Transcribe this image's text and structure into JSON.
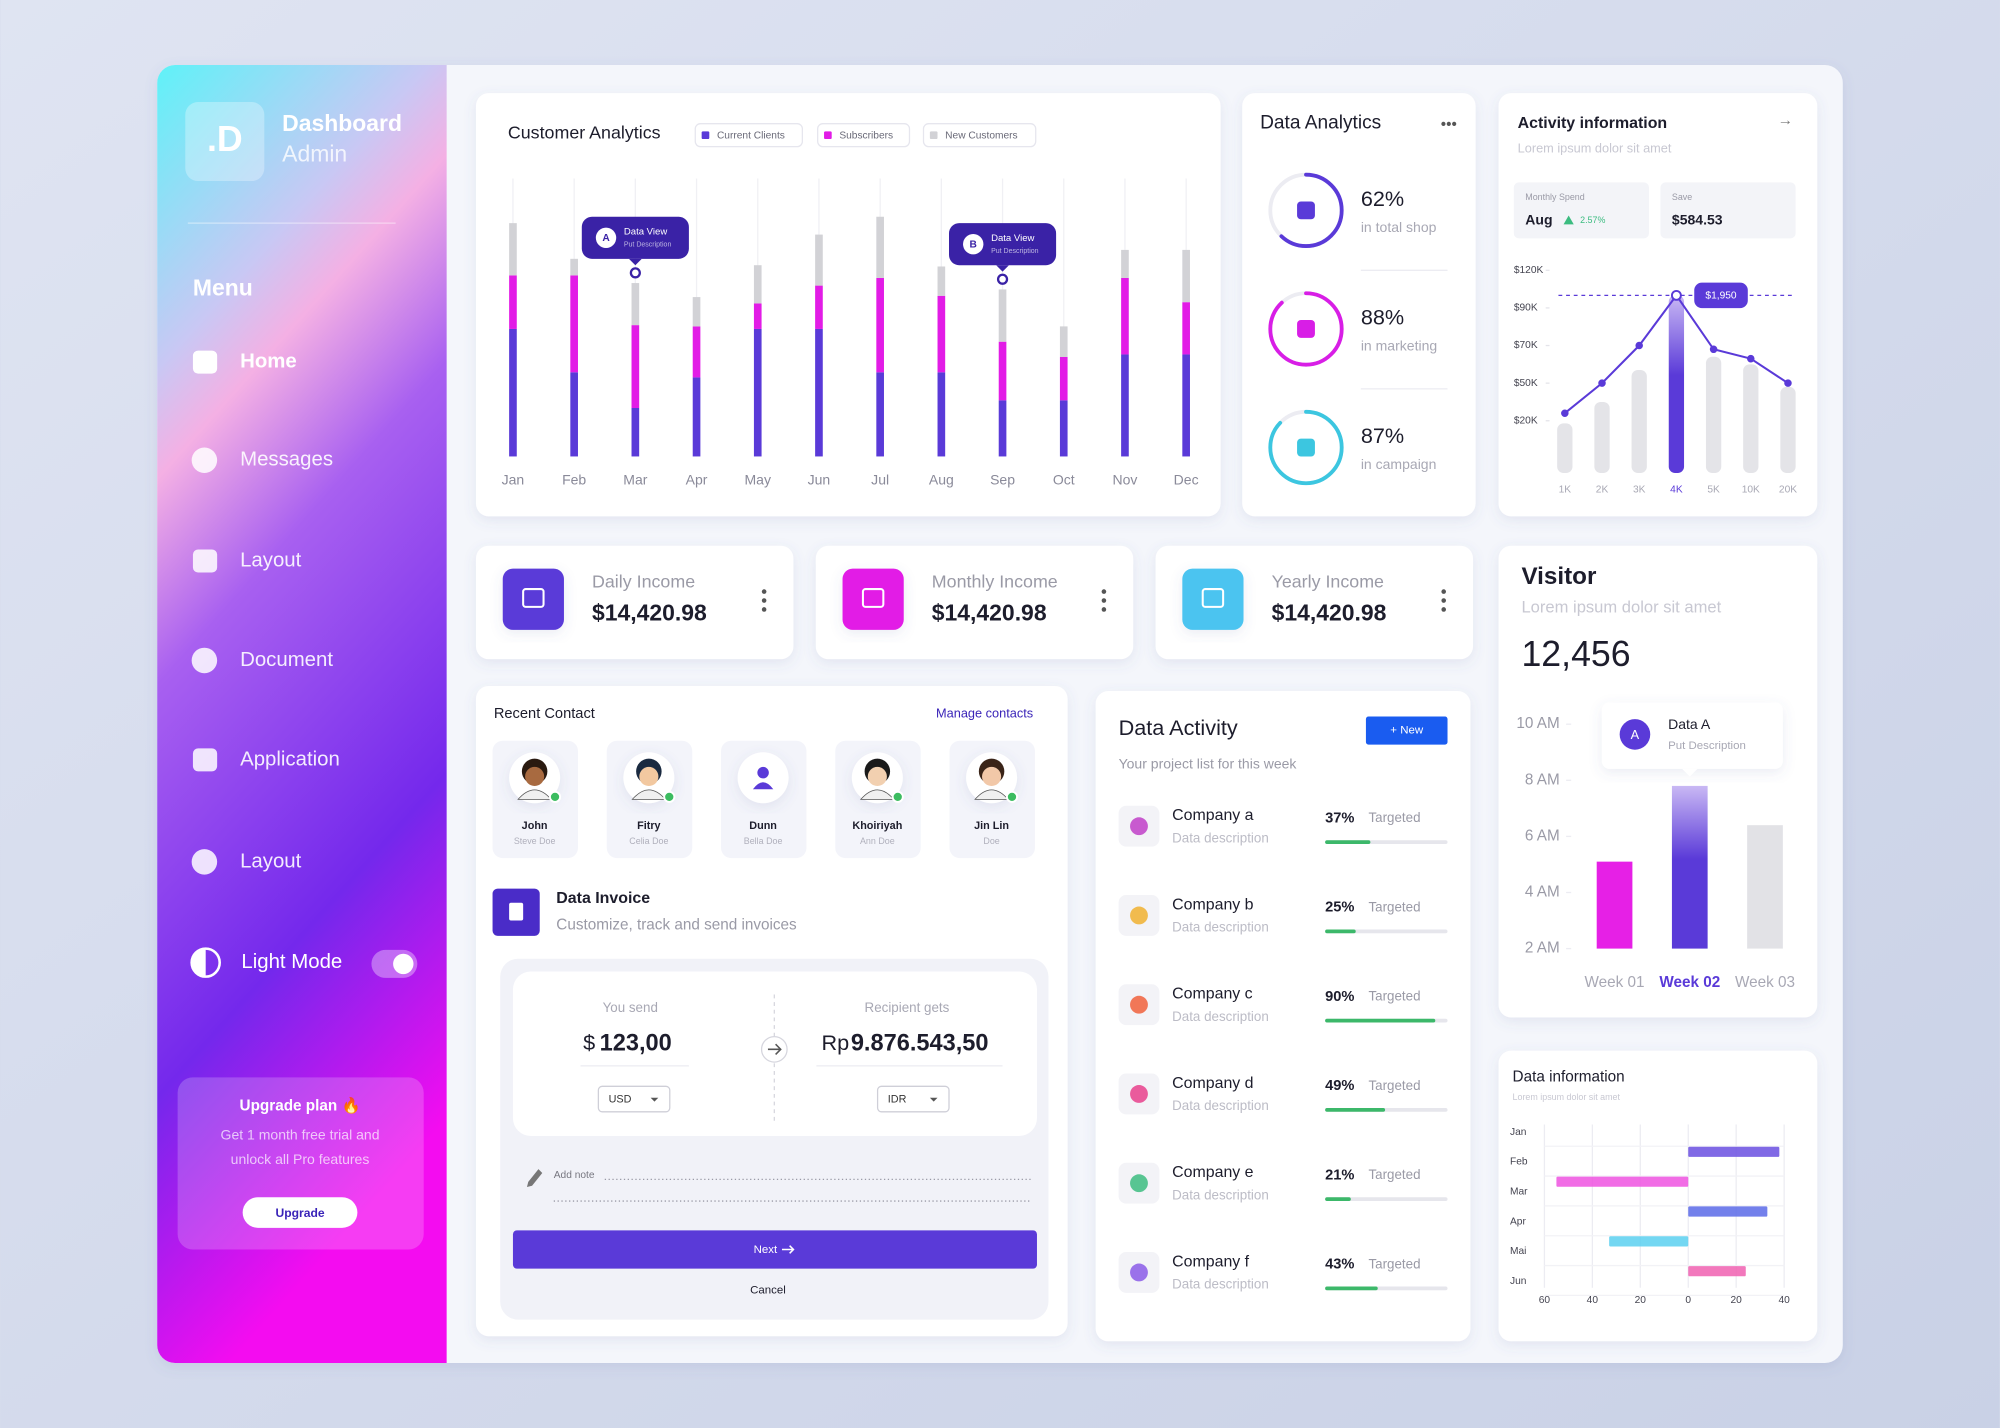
{
  "sidebar": {
    "logo": ".D",
    "brand": "Dashboard",
    "role": "Admin",
    "menu_title": "Menu",
    "items": [
      "Home",
      "Messages",
      "Layout",
      "Document",
      "Application",
      "Layout"
    ],
    "mode": "Light Mode",
    "upgrade": {
      "title": "Upgrade plan 🔥",
      "lines": [
        "Get 1 month free trial and",
        "unlock all Pro features"
      ],
      "button": "Upgrade"
    }
  },
  "chart_data": [
    {
      "type": "stacked_bar",
      "title": "Customer Analytics",
      "categories": [
        "Jan",
        "Feb",
        "Mar",
        "Apr",
        "May",
        "Jun",
        "Jul",
        "Aug",
        "Sep",
        "Oct",
        "Nov",
        "Dec"
      ],
      "series": [
        {
          "name": "Current Clients",
          "color": "#5a3ad8",
          "values": [
            100,
            66,
            38,
            62,
            100,
            100,
            66,
            66,
            44,
            44,
            80,
            80
          ]
        },
        {
          "name": "Subscribers",
          "color": "#e21ce6",
          "values": [
            42,
            76,
            65,
            40,
            20,
            34,
            74,
            60,
            46,
            34,
            60,
            41
          ]
        },
        {
          "name": "New Customers",
          "color": "#d2d2d6",
          "values": [
            41,
            13,
            33,
            23,
            30,
            40,
            48,
            23,
            41,
            24,
            22,
            41
          ]
        }
      ],
      "annotations": [
        {
          "badge": "A",
          "title": "Data View",
          "text": "Put Description",
          "category": "Mar"
        },
        {
          "badge": "B",
          "title": "Data View",
          "text": "Put Description",
          "category": "Sep"
        }
      ]
    },
    {
      "type": "bar_line",
      "title": "Activity information",
      "subtitle": "Lorem ipsum dolor sit amet",
      "cards": [
        {
          "label": "Monthly Spend",
          "value": "Aug",
          "change": "2.57%"
        },
        {
          "label": "Save",
          "value": "$584.53"
        }
      ],
      "categories": [
        "1K",
        "2K",
        "3K",
        "4K",
        "5K",
        "10K",
        "20K"
      ],
      "series": [
        {
          "type": "bar",
          "color": "#e4e4e8",
          "values": [
            19000,
            35000,
            57000,
            100000,
            64000,
            60000,
            47000
          ]
        },
        {
          "type": "line",
          "color": "#5a3ad8",
          "values": [
            26000,
            50000,
            70000,
            100000,
            68000,
            63000,
            50000
          ]
        }
      ],
      "highlight": "4K",
      "highlight_color": "#5a3ad8",
      "highlight_label": "$1,950",
      "ylim": [
        0,
        120000
      ],
      "yticks": [
        {
          "value": 120000,
          "label": "$120K"
        },
        {
          "value": 90000,
          "label": "$90K"
        },
        {
          "value": 70000,
          "label": "$70K"
        },
        {
          "value": 50000,
          "label": "$50K"
        },
        {
          "value": 20000,
          "label": "$20K"
        }
      ]
    },
    {
      "type": "bar",
      "title": "Visitor",
      "subtitle": "Lorem ipsum dolor sit amet",
      "headline": "12,456",
      "categories": [
        "Week 01",
        "Week 02",
        "Week 03"
      ],
      "values": [
        5.1,
        7.8,
        6.4
      ],
      "colors": [
        "#e620e6",
        "#5a3ad8",
        "#e2e2e6"
      ],
      "highlight": "Week 02",
      "ylim": [
        2,
        10
      ],
      "yticks": [
        {
          "value": 10,
          "label": "10 AM"
        },
        {
          "value": 8,
          "label": "8 AM"
        },
        {
          "value": 6,
          "label": "6 AM"
        },
        {
          "value": 4,
          "label": "4 AM"
        },
        {
          "value": 2,
          "label": "2 AM"
        }
      ],
      "annotation": {
        "badge": "A",
        "title": "Data A",
        "text": "Put Description",
        "category": "Week 02"
      }
    },
    {
      "type": "diverging_hbar",
      "title": "Data information",
      "subtitle": "Lorem ipsum dolor sit amet",
      "categories": [
        "Jan",
        "Feb",
        "Mar",
        "Apr",
        "Mai",
        "Jun"
      ],
      "values": [
        null,
        38,
        -55,
        33,
        -33,
        24
      ],
      "colors": [
        null,
        "#6a4fe0",
        "#ee52e0",
        "#5a6ae8",
        "#5ad0f0",
        "#f060b0"
      ],
      "xlim": [
        -60,
        40
      ],
      "xticks": [
        {
          "value": -60,
          "label": "60"
        },
        {
          "value": -40,
          "label": "40"
        },
        {
          "value": -20,
          "label": "20"
        },
        0,
        20,
        40
      ],
      "grid": true
    }
  ],
  "data_analytics": {
    "title": "Data Analytics",
    "items": [
      {
        "value": 62,
        "label": "62%",
        "caption": "in total shop",
        "color": "#5a3ad8"
      },
      {
        "value": 88,
        "label": "88%",
        "caption": "in marketing",
        "color": "#d81ee6"
      },
      {
        "value": 87,
        "label": "87%",
        "caption": "in campaign",
        "color": "#3cc6e0"
      }
    ]
  },
  "income": [
    {
      "title": "Daily Income",
      "amount": "$14,420.98",
      "color": "#5a3ad8"
    },
    {
      "title": "Monthly Income",
      "amount": "$14,420.98",
      "color": "#e21ce6"
    },
    {
      "title": "Yearly Income",
      "amount": "$14,420.98",
      "color": "#4cc4f0"
    }
  ],
  "contacts": {
    "title": "Recent Contact",
    "action": "Manage contacts",
    "people": [
      {
        "name": "John",
        "sub": "Steve Doe"
      },
      {
        "name": "Fitry",
        "sub": "Celia Doe"
      },
      {
        "name": "Dunn",
        "sub": "Bella Doe"
      },
      {
        "name": "Khoiriyah",
        "sub": "Ann Doe"
      },
      {
        "name": "Jin Lin",
        "sub": "Doe"
      }
    ]
  },
  "invoice": {
    "title": "Data Invoice",
    "subtitle": "Customize, track and send invoices",
    "send_label": "You send",
    "send_currency": "$",
    "send_amount": "123,00",
    "send_code": "USD",
    "receive_label": "Recipient gets",
    "receive_currency": "Rp",
    "receive_amount": "9.876.543,50",
    "receive_code": "IDR",
    "note": "Add note",
    "next": "Next",
    "cancel": "Cancel"
  },
  "data_activity": {
    "title": "Data Activity",
    "subtitle": "Your project list for this week",
    "button": "+ New",
    "items": [
      {
        "name": "Company a",
        "description": "Data description",
        "value": 37,
        "label": "37%",
        "status": "Targeted",
        "color": "#c03ec8"
      },
      {
        "name": "Company b",
        "description": "Data description",
        "value": 25,
        "label": "25%",
        "status": "Targeted",
        "color": "#f0b030"
      },
      {
        "name": "Company c",
        "description": "Data description",
        "value": 90,
        "label": "90%",
        "status": "Targeted",
        "color": "#f0603c"
      },
      {
        "name": "Company d",
        "description": "Data description",
        "value": 49,
        "label": "49%",
        "status": "Targeted",
        "color": "#e8408c"
      },
      {
        "name": "Company e",
        "description": "Data description",
        "value": 21,
        "label": "21%",
        "status": "Targeted",
        "color": "#3cbc80"
      },
      {
        "name": "Company f",
        "description": "Data description",
        "value": 43,
        "label": "43%",
        "status": "Targeted",
        "color": "#8a5ae8"
      }
    ]
  }
}
